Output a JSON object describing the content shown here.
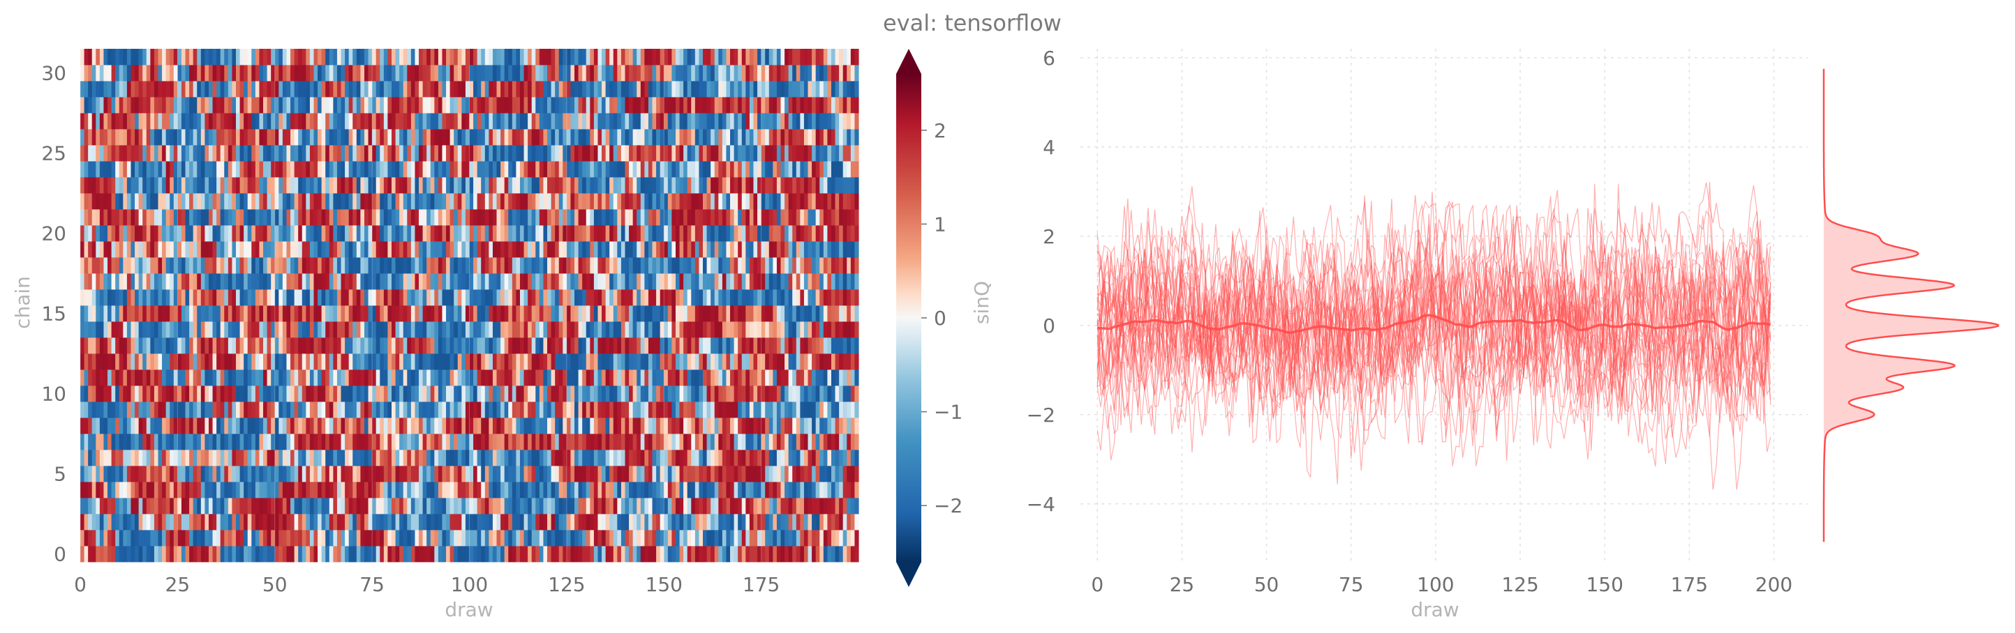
{
  "title": "eval: tensorflow",
  "chart_data": [
    {
      "type": "heatmap",
      "xlabel": "draw",
      "ylabel": "chain",
      "colorbar_label": "sinQ",
      "colormap": "RdBu_r",
      "draws": 200,
      "chains": 32,
      "xlim": [
        0,
        200
      ],
      "ylim": [
        0,
        31
      ],
      "xticks": [
        0,
        25,
        50,
        75,
        100,
        125,
        150,
        175
      ],
      "yticks": [
        0,
        5,
        10,
        15,
        20,
        25,
        30
      ],
      "color_range": [
        -2.6,
        2.6
      ],
      "colorbar_ticks": [
        2,
        1,
        0,
        -1,
        -2
      ],
      "colorbar_tick_labels": [
        "2",
        "1",
        "0",
        "−1",
        "−2"
      ]
    },
    {
      "type": "line",
      "xlabel": "draw",
      "ylabel": "",
      "series_count": 32,
      "series_color": "#ff4d4d",
      "xlim": [
        -5,
        210
      ],
      "ylim": [
        -5.3,
        6.2
      ],
      "xticks": [
        0,
        25,
        50,
        75,
        100,
        125,
        150,
        175,
        200
      ],
      "yticks": [
        6,
        4,
        2,
        0,
        -2,
        -4
      ],
      "ytick_labels": [
        "6",
        "4",
        "2",
        "0",
        "−2",
        "−4"
      ],
      "mean_line": "thick line at approximately 0",
      "grid": true,
      "marginal": {
        "type": "kde",
        "peaks": [
          -2.0,
          -1.4,
          -0.9,
          0.0,
          0.9,
          1.6,
          2.0
        ],
        "color": "#ff4d4d"
      }
    }
  ]
}
